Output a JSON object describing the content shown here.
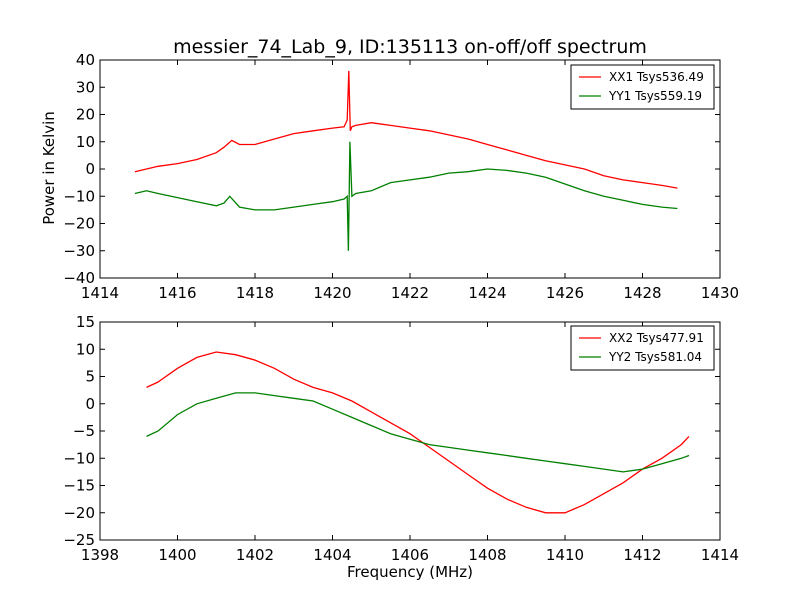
{
  "figure": {
    "title": "messier_74_Lab_9, ID:135113 on-off/off spectrum",
    "ylabel": "Power in Kelvin",
    "xlabel": "Frequency (MHz)"
  },
  "chart_data": [
    {
      "type": "line",
      "xlim": [
        1414,
        1430
      ],
      "ylim": [
        -40,
        40
      ],
      "xticks": [
        "1414",
        "1416",
        "1418",
        "1420",
        "1422",
        "1424",
        "1426",
        "1428",
        "1430"
      ],
      "yticks": [
        "40",
        "30",
        "20",
        "10",
        "0",
        "−10",
        "−20",
        "−30",
        "−40"
      ],
      "grid": false,
      "legend": "top-right",
      "series": [
        {
          "name": "XX1 Tsys536.49",
          "color": "#ff0000",
          "x": [
            1414.9,
            1415.5,
            1416.0,
            1416.5,
            1417.0,
            1417.2,
            1417.4,
            1417.6,
            1418.0,
            1418.5,
            1419.0,
            1419.5,
            1420.0,
            1420.3,
            1420.38,
            1420.42,
            1420.46,
            1420.5,
            1420.6,
            1421.0,
            1421.5,
            1422.0,
            1422.5,
            1423.0,
            1423.5,
            1424.0,
            1424.5,
            1425.0,
            1425.5,
            1426.0,
            1426.5,
            1427.0,
            1427.5,
            1428.0,
            1428.5,
            1428.9
          ],
          "y": [
            -1,
            1,
            2,
            3.5,
            6,
            8,
            10.5,
            9,
            9,
            11,
            13,
            14,
            15,
            15.5,
            18,
            36,
            14,
            15.5,
            16,
            17,
            16,
            15,
            14,
            12.5,
            11,
            9,
            7,
            5,
            3,
            1.5,
            0,
            -2.5,
            -4,
            -5,
            -6,
            -7
          ]
        },
        {
          "name": "YY1 Tsys559.19",
          "color": "#008000",
          "x": [
            1414.9,
            1415.2,
            1415.5,
            1416.0,
            1416.5,
            1417.0,
            1417.2,
            1417.35,
            1417.6,
            1418.0,
            1418.5,
            1419.0,
            1419.5,
            1420.0,
            1420.3,
            1420.38,
            1420.41,
            1420.45,
            1420.5,
            1420.6,
            1421.0,
            1421.5,
            1422.0,
            1422.5,
            1423.0,
            1423.5,
            1424.0,
            1424.5,
            1425.0,
            1425.5,
            1426.0,
            1426.5,
            1427.0,
            1427.5,
            1428.0,
            1428.5,
            1428.9
          ],
          "y": [
            -9,
            -8,
            -9,
            -10.5,
            -12,
            -13.5,
            -12.5,
            -10,
            -14,
            -15,
            -15,
            -14,
            -13,
            -12,
            -11,
            -10,
            -30,
            10,
            -10,
            -9,
            -8,
            -5,
            -4,
            -3,
            -1.5,
            -1,
            0,
            -0.5,
            -1.5,
            -3,
            -5.5,
            -8,
            -10,
            -11.5,
            -13,
            -14,
            -14.5
          ]
        }
      ]
    },
    {
      "type": "line",
      "xlim": [
        1398,
        1414
      ],
      "ylim": [
        -25,
        15
      ],
      "xticks": [
        "1398",
        "1400",
        "1402",
        "1404",
        "1406",
        "1408",
        "1410",
        "1412",
        "1414"
      ],
      "yticks": [
        "15",
        "10",
        "5",
        "0",
        "−5",
        "−10",
        "−15",
        "−20",
        "−25"
      ],
      "grid": false,
      "legend": "top-right",
      "series": [
        {
          "name": "XX2 Tsys477.91",
          "color": "#ff0000",
          "x": [
            1399.2,
            1399.5,
            1400.0,
            1400.5,
            1401.0,
            1401.5,
            1402.0,
            1402.5,
            1403.0,
            1403.5,
            1404.0,
            1404.5,
            1405.0,
            1405.5,
            1406.0,
            1406.5,
            1407.0,
            1407.5,
            1408.0,
            1408.5,
            1409.0,
            1409.5,
            1410.0,
            1410.5,
            1411.0,
            1411.5,
            1412.0,
            1412.5,
            1413.0,
            1413.2
          ],
          "y": [
            3,
            4,
            6.5,
            8.5,
            9.5,
            9,
            8,
            6.5,
            4.5,
            3,
            2,
            0.5,
            -1.5,
            -3.5,
            -5.5,
            -8,
            -10.5,
            -13,
            -15.5,
            -17.5,
            -19,
            -20,
            -20,
            -18.5,
            -16.5,
            -14.5,
            -12,
            -10,
            -7.5,
            -6
          ]
        },
        {
          "name": "YY2 Tsys581.04",
          "color": "#008000",
          "x": [
            1399.2,
            1399.5,
            1400.0,
            1400.5,
            1401.0,
            1401.5,
            1402.0,
            1402.5,
            1403.0,
            1403.5,
            1404.0,
            1404.5,
            1405.0,
            1405.5,
            1406.0,
            1406.5,
            1407.0,
            1407.5,
            1408.0,
            1408.5,
            1409.0,
            1409.5,
            1410.0,
            1410.5,
            1411.0,
            1411.5,
            1412.0,
            1412.5,
            1413.0,
            1413.2
          ],
          "y": [
            -6,
            -5,
            -2,
            0,
            1,
            2,
            2,
            1.5,
            1,
            0.5,
            -1,
            -2.5,
            -4,
            -5.5,
            -6.5,
            -7.5,
            -8,
            -8.5,
            -9,
            -9.5,
            -10,
            -10.5,
            -11,
            -11.5,
            -12,
            -12.5,
            -12,
            -11,
            -10,
            -9.5
          ]
        }
      ]
    }
  ]
}
